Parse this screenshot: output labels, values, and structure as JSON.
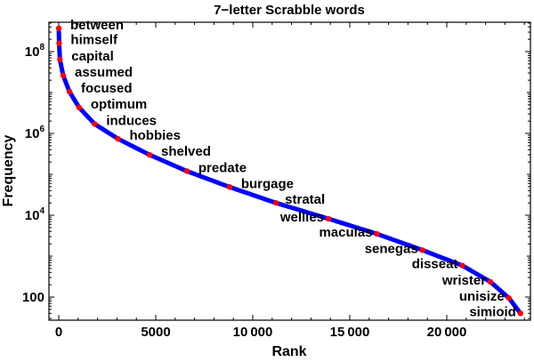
{
  "chart_data": {
    "type": "line",
    "title": "7−letter Scrabble words",
    "xlabel": "Rank",
    "ylabel": "Frequency",
    "xscale": "linear",
    "yscale": "log",
    "xlim": [
      -500,
      24500
    ],
    "ylim": [
      30,
      500000000
    ],
    "grid": false,
    "legend": null,
    "x_ticks": [
      {
        "value": 0,
        "label": "0"
      },
      {
        "value": 5000,
        "label": "5000"
      },
      {
        "value": 10000,
        "label": "10000"
      },
      {
        "value": 15000,
        "label": "15000"
      },
      {
        "value": 20000,
        "label": "20000"
      }
    ],
    "y_ticks": [
      {
        "value": 100,
        "label": "100",
        "base": "100",
        "exp": ""
      },
      {
        "value": 10000,
        "label": "10^4",
        "base": "10",
        "exp": "4"
      },
      {
        "value": 1000000,
        "label": "10^6",
        "base": "10",
        "exp": "6"
      },
      {
        "value": 100000000,
        "label": "10^8",
        "base": "10",
        "exp": "8"
      }
    ],
    "series": [
      {
        "name": "frequency curve",
        "color": "#0000ff",
        "style": "thick line"
      },
      {
        "name": "labeled words",
        "color": "#ff0000",
        "style": "points",
        "points": [
          {
            "word": "between",
            "rank": 1,
            "frequency": 370000000
          },
          {
            "word": "himself",
            "rank": 20,
            "frequency": 160000000
          },
          {
            "word": "capital",
            "rank": 60,
            "frequency": 64000000
          },
          {
            "word": "assumed",
            "rank": 230,
            "frequency": 26000000
          },
          {
            "word": "focused",
            "rank": 550,
            "frequency": 10500000
          },
          {
            "word": "optimum",
            "rank": 1050,
            "frequency": 4300000
          },
          {
            "word": "induces",
            "rank": 1850,
            "frequency": 1700000
          },
          {
            "word": "hobbies",
            "rank": 3050,
            "frequency": 740000
          },
          {
            "word": "shelved",
            "rank": 4680,
            "frequency": 300000
          },
          {
            "word": "predate",
            "rank": 6600,
            "frequency": 120000
          },
          {
            "word": "burgage",
            "rank": 8800,
            "frequency": 49000
          },
          {
            "word": "stratal",
            "rank": 11200,
            "frequency": 20000
          },
          {
            "word": "wellies",
            "rank": 13900,
            "frequency": 8200
          },
          {
            "word": "maculas",
            "rank": 16400,
            "frequency": 3500
          },
          {
            "word": "senegas",
            "rank": 18750,
            "frequency": 1400
          },
          {
            "word": "disseat",
            "rank": 20800,
            "frequency": 590
          },
          {
            "word": "wrister",
            "rank": 22250,
            "frequency": 235
          },
          {
            "word": "unisize",
            "rank": 23200,
            "frequency": 95
          },
          {
            "word": "simioid",
            "rank": 23800,
            "frequency": 40
          }
        ]
      }
    ],
    "annotations": [
      "between",
      "himself",
      "capital",
      "assumed",
      "focused",
      "optimum",
      "induces",
      "hobbies",
      "shelved",
      "predate",
      "burgage",
      "stratal",
      "wellies",
      "maculas",
      "senegas",
      "disseat",
      "wrister",
      "unisize",
      "simioid"
    ]
  },
  "colors": {
    "curve": "#0000ff",
    "points": "#ff0000",
    "frame": "#000000",
    "background": "#ffffff"
  }
}
